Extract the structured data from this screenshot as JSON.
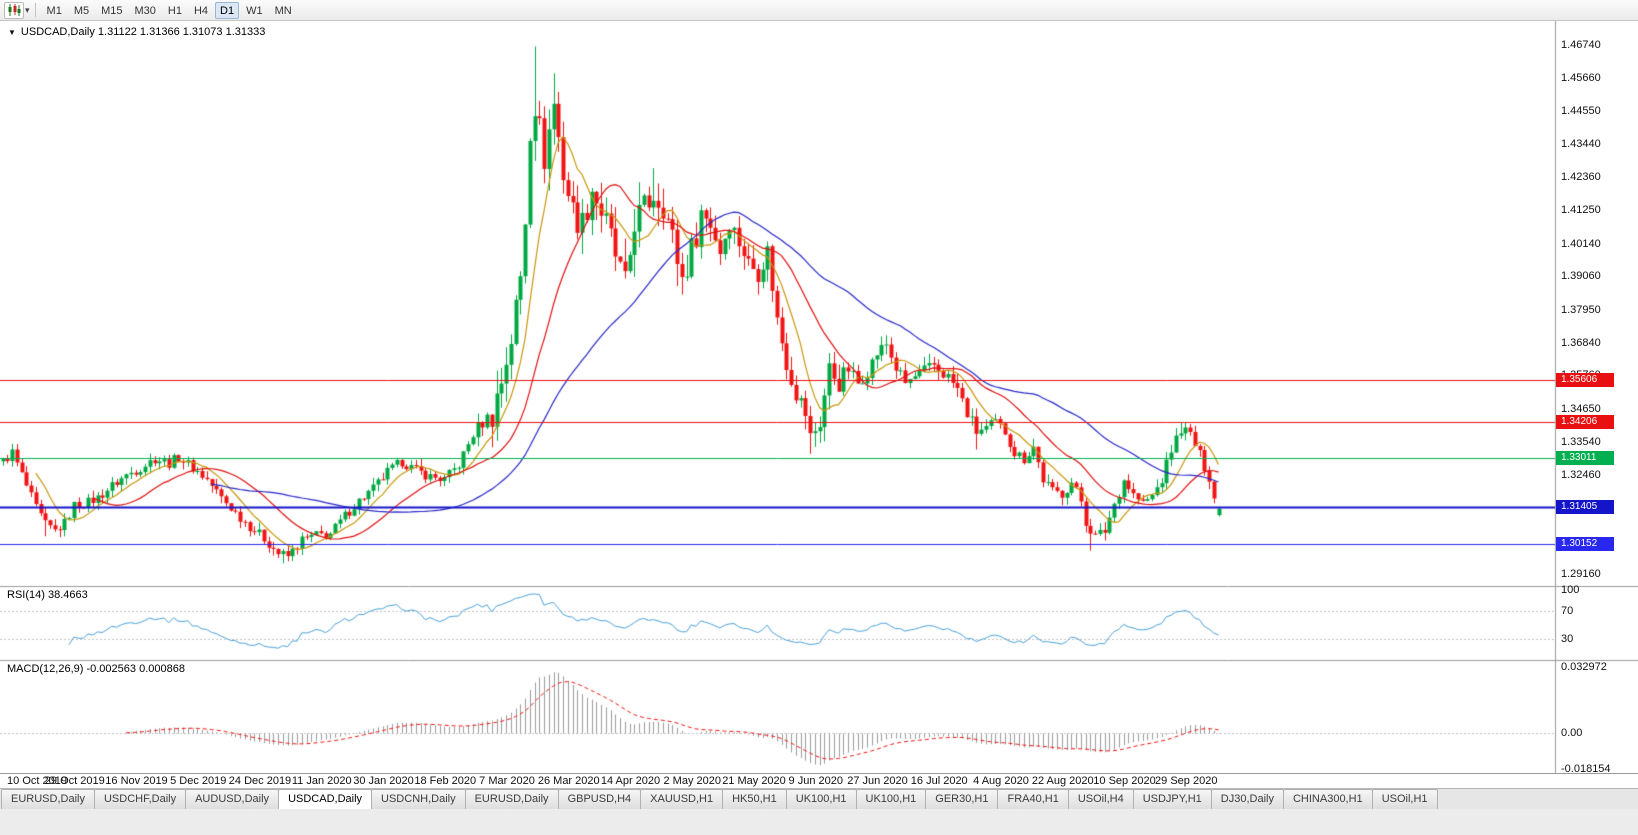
{
  "toolbar": {
    "timeframes": [
      "M1",
      "M5",
      "M15",
      "M30",
      "H1",
      "H4",
      "D1",
      "W1",
      "MN"
    ],
    "active_timeframe": "D1"
  },
  "icons": {
    "chart_type": "candlestick-chart-icon",
    "dropdown": "chevron-down-icon",
    "symbol_marker": "triangle-down-icon"
  },
  "chart": {
    "title_text": "USDCAD,Daily 1.31122 1.31366 1.31073 1.31333",
    "rsi_label_text": "RSI(14) 38.4663",
    "macd_label_text": "MACD(12,26,9) -0.002563 0.000868"
  },
  "chart_data": {
    "type": "candlestick",
    "symbol": "USDCAD",
    "period": "Daily",
    "ohlc_display": {
      "open": "1.31122",
      "high": "1.31366",
      "low": "1.31073",
      "close": "1.31333"
    },
    "bars": 257,
    "up_color": "#00a843",
    "down_color": "#f01414",
    "y_ticks": [
      {
        "v": 1.4674,
        "label": "1.46740"
      },
      {
        "v": 1.4566,
        "label": "1.45660"
      },
      {
        "v": 1.4455,
        "label": "1.44550"
      },
      {
        "v": 1.4344,
        "label": "1.43440"
      },
      {
        "v": 1.4236,
        "label": "1.42360"
      },
      {
        "v": 1.4125,
        "label": "1.41250"
      },
      {
        "v": 1.4014,
        "label": "1.40140"
      },
      {
        "v": 1.3906,
        "label": "1.39060"
      },
      {
        "v": 1.3795,
        "label": "1.37950"
      },
      {
        "v": 1.3684,
        "label": "1.36840"
      },
      {
        "v": 1.3576,
        "label": "1.35760"
      },
      {
        "v": 1.3465,
        "label": "1.34650"
      },
      {
        "v": 1.3354,
        "label": "1.33540"
      },
      {
        "v": 1.3246,
        "label": "1.32460"
      },
      {
        "v": 1.3135,
        "label": "1.31350"
      },
      {
        "v": 1.3024,
        "label": "1.30240"
      },
      {
        "v": 1.2916,
        "label": "1.29160"
      }
    ],
    "date_labels": [
      {
        "label": "10 Oct 2019",
        "bar": 2
      },
      {
        "label": "29 Oct 2019",
        "bar": 15
      },
      {
        "label": "16 Nov 2019",
        "bar": 28
      },
      {
        "label": "5 Dec 2019",
        "bar": 41
      },
      {
        "label": "24 Dec 2019",
        "bar": 54
      },
      {
        "label": "11 Jan 2020",
        "bar": 67
      },
      {
        "label": "30 Jan 2020",
        "bar": 80
      },
      {
        "label": "18 Feb 2020",
        "bar": 93
      },
      {
        "label": "7 Mar 2020",
        "bar": 106
      },
      {
        "label": "26 Mar 2020",
        "bar": 119
      },
      {
        "label": "14 Apr 2020",
        "bar": 132
      },
      {
        "label": "2 May 2020",
        "bar": 145
      },
      {
        "label": "21 May 2020",
        "bar": 158
      },
      {
        "label": "9 Jun 2020",
        "bar": 171
      },
      {
        "label": "27 Jun 2020",
        "bar": 184
      },
      {
        "label": "16 Jul 2020",
        "bar": 197
      },
      {
        "label": "4 Aug 2020",
        "bar": 210
      },
      {
        "label": "22 Aug 2020",
        "bar": 223
      },
      {
        "label": "10 Sep 2020",
        "bar": 236
      },
      {
        "label": "29 Sep 2020",
        "bar": 249
      }
    ],
    "horizontal_lines": [
      {
        "price": 1.35606,
        "label": "1.35606",
        "color": "#e81010",
        "width": 1
      },
      {
        "price": 1.34206,
        "label": "1.34206",
        "color": "#e81010",
        "width": 1
      },
      {
        "price": 1.33011,
        "label": "1.33011",
        "color": "#00b050",
        "width": 1
      },
      {
        "price": 1.31405,
        "label": "1.31405",
        "color": "#1414c8",
        "width": 2
      },
      {
        "price": 1.30152,
        "label": "1.30152",
        "color": "#2828f0",
        "width": 1
      }
    ],
    "close_anchors": [
      [
        0,
        1.329
      ],
      [
        2,
        1.332
      ],
      [
        4,
        1.3245
      ],
      [
        7,
        1.3135
      ],
      [
        9,
        1.308
      ],
      [
        11,
        1.306
      ],
      [
        13,
        1.3085
      ],
      [
        15,
        1.3145
      ],
      [
        18,
        1.3155
      ],
      [
        20,
        1.317
      ],
      [
        23,
        1.321
      ],
      [
        26,
        1.3245
      ],
      [
        29,
        1.327
      ],
      [
        32,
        1.33
      ],
      [
        35,
        1.3285
      ],
      [
        37,
        1.3305
      ],
      [
        40,
        1.327
      ],
      [
        43,
        1.323
      ],
      [
        46,
        1.317
      ],
      [
        49,
        1.312
      ],
      [
        52,
        1.3075
      ],
      [
        55,
        1.3035
      ],
      [
        58,
        1.2985
      ],
      [
        60,
        1.2975
      ],
      [
        63,
        1.303
      ],
      [
        66,
        1.3045
      ],
      [
        69,
        1.305
      ],
      [
        72,
        1.311
      ],
      [
        75,
        1.316
      ],
      [
        78,
        1.32
      ],
      [
        81,
        1.3255
      ],
      [
        84,
        1.329
      ],
      [
        87,
        1.326
      ],
      [
        90,
        1.324
      ],
      [
        93,
        1.323
      ],
      [
        96,
        1.328
      ],
      [
        99,
        1.338
      ],
      [
        101,
        1.342
      ],
      [
        103,
        1.345
      ],
      [
        105,
        1.356
      ],
      [
        107,
        1.37
      ],
      [
        109,
        1.39
      ],
      [
        110,
        1.41
      ],
      [
        111,
        1.44
      ],
      [
        112,
        1.448
      ],
      [
        114,
        1.43
      ],
      [
        116,
        1.448
      ],
      [
        118,
        1.425
      ],
      [
        120,
        1.412
      ],
      [
        122,
        1.408
      ],
      [
        124,
        1.42
      ],
      [
        126,
        1.412
      ],
      [
        128,
        1.403
      ],
      [
        130,
        1.392
      ],
      [
        131,
        1.387
      ],
      [
        133,
        1.409
      ],
      [
        135,
        1.413
      ],
      [
        137,
        1.418
      ],
      [
        139,
        1.415
      ],
      [
        141,
        1.403
      ],
      [
        143,
        1.39
      ],
      [
        145,
        1.399
      ],
      [
        147,
        1.412
      ],
      [
        149,
        1.408
      ],
      [
        151,
        1.399
      ],
      [
        153,
        1.409
      ],
      [
        155,
        1.402
      ],
      [
        157,
        1.395
      ],
      [
        159,
        1.392
      ],
      [
        161,
        1.399
      ],
      [
        163,
        1.376
      ],
      [
        165,
        1.362
      ],
      [
        167,
        1.352
      ],
      [
        169,
        1.345
      ],
      [
        170,
        1.337
      ],
      [
        172,
        1.342
      ],
      [
        174,
        1.36
      ],
      [
        176,
        1.355
      ],
      [
        178,
        1.36
      ],
      [
        180,
        1.355
      ],
      [
        182,
        1.359
      ],
      [
        184,
        1.365
      ],
      [
        186,
        1.368
      ],
      [
        188,
        1.36
      ],
      [
        190,
        1.355
      ],
      [
        193,
        1.358
      ],
      [
        196,
        1.361
      ],
      [
        199,
        1.357
      ],
      [
        201,
        1.353
      ],
      [
        203,
        1.345
      ],
      [
        205,
        1.339
      ],
      [
        207,
        1.34
      ],
      [
        209,
        1.342
      ],
      [
        211,
        1.339
      ],
      [
        213,
        1.332
      ],
      [
        215,
        1.33
      ],
      [
        217,
        1.334
      ],
      [
        219,
        1.323
      ],
      [
        221,
        1.319
      ],
      [
        223,
        1.3185
      ],
      [
        225,
        1.322
      ],
      [
        227,
        1.316
      ],
      [
        228,
        1.309
      ],
      [
        230,
        1.304
      ],
      [
        232,
        1.306
      ],
      [
        234,
        1.315
      ],
      [
        236,
        1.323
      ],
      [
        238,
        1.318
      ],
      [
        240,
        1.315
      ],
      [
        242,
        1.3175
      ],
      [
        244,
        1.323
      ],
      [
        246,
        1.333
      ],
      [
        248,
        1.34
      ],
      [
        250,
        1.338
      ],
      [
        252,
        1.331
      ],
      [
        254,
        1.324
      ],
      [
        255,
        1.317
      ],
      [
        256,
        1.3133
      ]
    ],
    "volatility_zones": [
      [
        0,
        99,
        0.75
      ],
      [
        103,
        148,
        2.4
      ],
      [
        149,
        178,
        1.5
      ],
      [
        206,
        256,
        0.85
      ]
    ],
    "spikes": [
      {
        "i": 9,
        "low": 1.3042
      },
      {
        "i": 59,
        "low": 1.2952
      },
      {
        "i": 112,
        "high": 1.4669
      },
      {
        "i": 116,
        "high": 1.458
      },
      {
        "i": 137,
        "high": 1.4265
      },
      {
        "i": 170,
        "low": 1.3316
      },
      {
        "i": 205,
        "low": 1.333
      },
      {
        "i": 229,
        "low": 1.2994
      },
      {
        "i": 248,
        "high": 1.3421
      },
      {
        "i": 250,
        "high": 1.3415
      }
    ],
    "last_candle": {
      "open": 1.31122,
      "high": 1.31366,
      "low": 1.31073,
      "close": 1.31333
    },
    "moving_averages": [
      {
        "period": 8,
        "color": "#c8960c"
      },
      {
        "period": 20,
        "color": "#e01010"
      },
      {
        "period": 45,
        "color": "#2828c8"
      }
    ],
    "rsi": {
      "period": 14,
      "value": 38.4663,
      "color": "#4aa0d8",
      "levels": [
        70,
        30
      ],
      "axis_labels": [
        {
          "v": 100,
          "label": "100"
        },
        {
          "v": 70,
          "label": "70"
        },
        {
          "v": 30,
          "label": "30"
        }
      ]
    },
    "macd": {
      "fast": 12,
      "slow": 26,
      "signal_period": 9,
      "main_value": -0.002563,
      "signal_value": 0.000868,
      "histogram_color": "#9b9b9b",
      "signal_color": "#f01414",
      "axis_labels": [
        {
          "v": 0.032972,
          "label": "0.032972"
        },
        {
          "v": 0,
          "label": "0.00"
        },
        {
          "v": -0.018154,
          "label": "-0.018154"
        }
      ]
    }
  },
  "bottom_tabs": {
    "active_index": 3,
    "tabs": [
      "EURUSD,Daily",
      "USDCHF,Daily",
      "AUDUSD,Daily",
      "USDCAD,Daily",
      "USDCNH,Daily",
      "EURUSD,Daily",
      "GBPUSD,H4",
      "XAUUSD,H1",
      "HK50,H1",
      "UK100,H1",
      "UK100,H1",
      "GER30,H1",
      "FRA40,H1",
      "USOil,H4",
      "USDJPY,H1",
      "DJ30,Daily",
      "CHINA300,H1",
      "USOil,H1"
    ]
  }
}
